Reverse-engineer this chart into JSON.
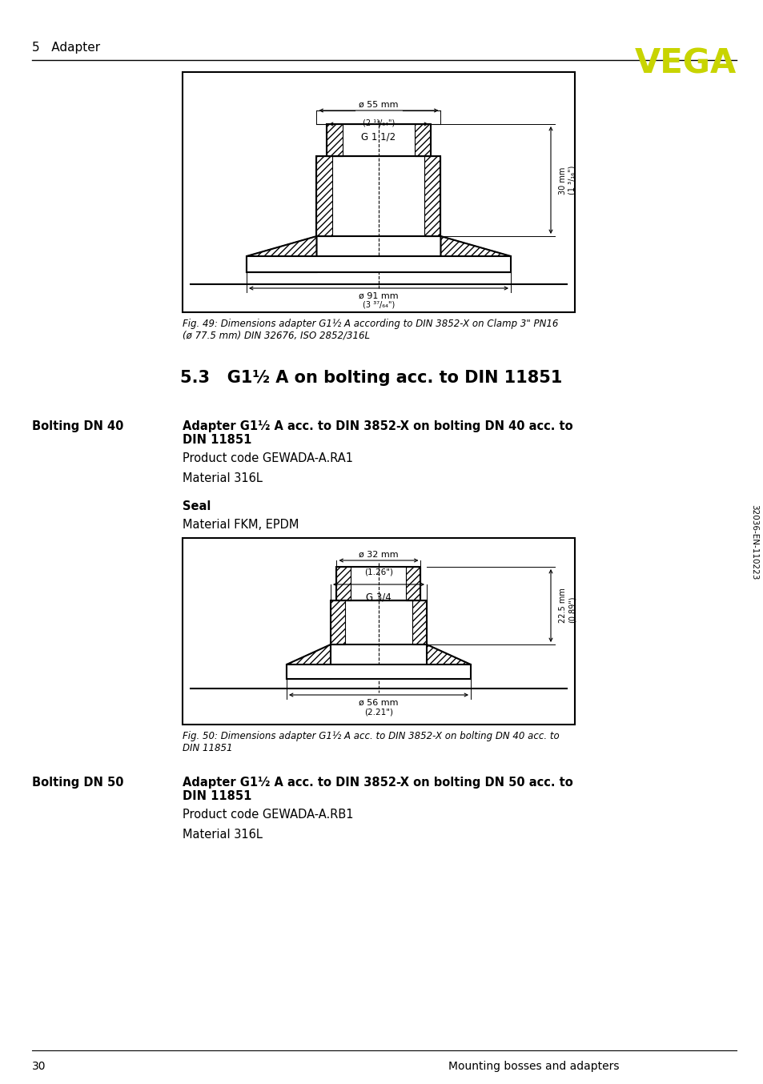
{
  "page_number": "30",
  "footer_right": "Mounting bosses and adapters",
  "side_text": "32036-EN-110223",
  "header_section": "5   Adapter",
  "vega_color": "#c8d400",
  "section_title": "5.3   G1½ A on bolting acc. to DIN 11851",
  "fig49_caption": "Fig. 49: Dimensions adapter G1½ A according to DIN 3852-X on Clamp 3\" PN16\n(ø 77.5 mm) DIN 32676, ISO 2852/316L",
  "fig50_caption": "Fig. 50: Dimensions adapter G1½ A acc. to DIN 3852-X on bolting DN 40 acc. to\nDIN 11851",
  "bolting_dn40_label": "Bolting DN 40",
  "bolting_dn40_title": "Adapter G1½ A acc. to DIN 3852-X on bolting DN 40 acc. to\nDIN 11851",
  "bolting_dn40_product": "Product code GEWADA-A.RA1",
  "bolting_dn40_material": "Material 316L",
  "bolting_dn40_seal_title": "Seal",
  "bolting_dn40_seal_material": "Material FKM, EPDM",
  "bolting_dn50_label": "Bolting DN 50",
  "bolting_dn50_title": "Adapter G1½ A acc. to DIN 3852-X on bolting DN 50 acc. to\nDIN 11851",
  "bolting_dn50_product": "Product code GEWADA-A.RB1",
  "bolting_dn50_material": "Material 316L"
}
